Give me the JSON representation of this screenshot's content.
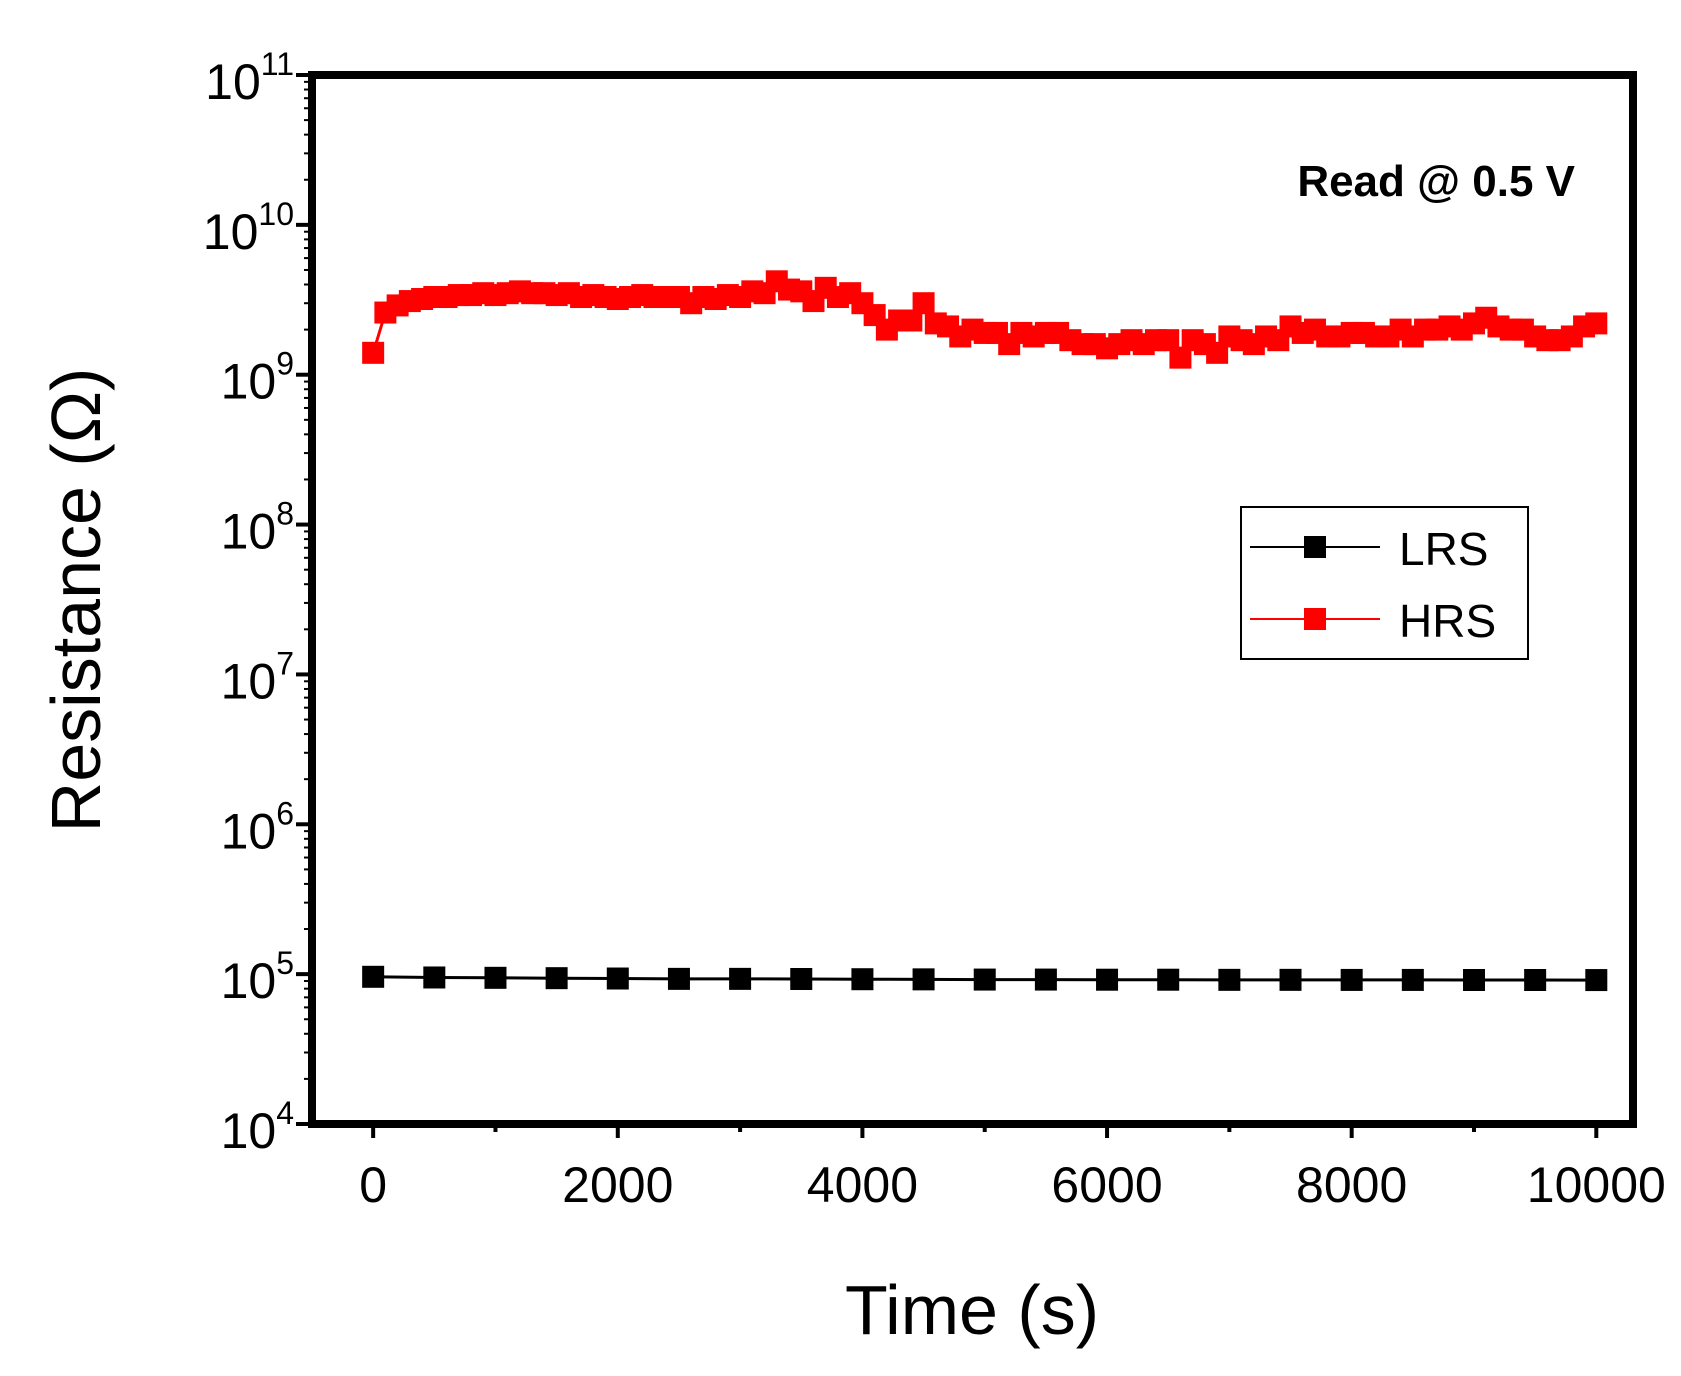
{
  "chart_data": {
    "type": "scatter",
    "xlabel": "Time (s)",
    "ylabel": "Resistance (Ω)",
    "annotation": "Read @ 0.5 V",
    "xlim": [
      -500,
      10300
    ],
    "ylim": [
      10000,
      100000000000
    ],
    "yscale": "log",
    "xticks": [
      0,
      2000,
      4000,
      6000,
      8000,
      10000
    ],
    "yticks": [
      {
        "base": "10",
        "exp": "4",
        "value": 10000
      },
      {
        "base": "10",
        "exp": "5",
        "value": 100000
      },
      {
        "base": "10",
        "exp": "6",
        "value": 1000000
      },
      {
        "base": "10",
        "exp": "7",
        "value": 10000000
      },
      {
        "base": "10",
        "exp": "8",
        "value": 100000000
      },
      {
        "base": "10",
        "exp": "9",
        "value": 1000000000
      },
      {
        "base": "10",
        "exp": "10",
        "value": 10000000000
      },
      {
        "base": "10",
        "exp": "11",
        "value": 100000000000
      }
    ],
    "legend_position": "center-right",
    "series": [
      {
        "name": "LRS",
        "color": "#000000",
        "marker": "square",
        "x": [
          0,
          500,
          1000,
          1500,
          2000,
          2500,
          3000,
          3500,
          4000,
          4500,
          5000,
          5500,
          6000,
          6500,
          7000,
          7500,
          8000,
          8500,
          9000,
          9500,
          10000
        ],
        "y": [
          96000,
          95000,
          94500,
          94000,
          93500,
          93000,
          93000,
          92800,
          92500,
          92300,
          92000,
          92000,
          91800,
          91800,
          91600,
          91600,
          91500,
          91500,
          91400,
          91400,
          91300
        ]
      },
      {
        "name": "HRS",
        "color": "#ff0000",
        "marker": "square",
        "x": [
          0,
          100,
          200,
          300,
          400,
          500,
          600,
          700,
          800,
          900,
          1000,
          1100,
          1200,
          1300,
          1400,
          1500,
          1600,
          1700,
          1800,
          1900,
          2000,
          2100,
          2200,
          2300,
          2400,
          2500,
          2600,
          2700,
          2800,
          2900,
          3000,
          3100,
          3200,
          3300,
          3400,
          3500,
          3600,
          3700,
          3800,
          3900,
          4000,
          4100,
          4200,
          4300,
          4400,
          4500,
          4600,
          4700,
          4800,
          4900,
          5000,
          5100,
          5200,
          5300,
          5400,
          5500,
          5600,
          5700,
          5800,
          5900,
          6000,
          6100,
          6200,
          6300,
          6400,
          6500,
          6600,
          6700,
          6800,
          6900,
          7000,
          7100,
          7200,
          7300,
          7400,
          7500,
          7600,
          7700,
          7800,
          7900,
          8000,
          8100,
          8200,
          8300,
          8400,
          8500,
          8600,
          8700,
          8800,
          8900,
          9000,
          9100,
          9200,
          9300,
          9400,
          9500,
          9600,
          9700,
          9800,
          9900,
          10000
        ],
        "y": [
          1400000000,
          2600000000,
          2900000000,
          3100000000,
          3200000000,
          3300000000,
          3300000000,
          3400000000,
          3400000000,
          3500000000,
          3400000000,
          3500000000,
          3600000000,
          3500000000,
          3500000000,
          3400000000,
          3500000000,
          3300000000,
          3400000000,
          3300000000,
          3200000000,
          3300000000,
          3400000000,
          3300000000,
          3300000000,
          3300000000,
          3000000000,
          3300000000,
          3200000000,
          3400000000,
          3300000000,
          3600000000,
          3500000000,
          4200000000,
          3700000000,
          3600000000,
          3100000000,
          3800000000,
          3300000000,
          3500000000,
          3000000000,
          2500000000,
          2000000000,
          2300000000,
          2300000000,
          3000000000,
          2200000000,
          2100000000,
          1800000000,
          2000000000,
          1900000000,
          1900000000,
          1600000000,
          1900000000,
          1800000000,
          1900000000,
          1900000000,
          1700000000,
          1600000000,
          1600000000,
          1500000000,
          1600000000,
          1700000000,
          1600000000,
          1700000000,
          1700000000,
          1300000000,
          1700000000,
          1600000000,
          1400000000,
          1800000000,
          1700000000,
          1600000000,
          1800000000,
          1700000000,
          2100000000,
          1900000000,
          2000000000,
          1800000000,
          1800000000,
          1900000000,
          1900000000,
          1800000000,
          1800000000,
          2000000000,
          1800000000,
          2000000000,
          2000000000,
          2100000000,
          2000000000,
          2200000000,
          2400000000,
          2100000000,
          2000000000,
          2000000000,
          1800000000,
          1700000000,
          1700000000,
          1800000000,
          2100000000,
          2200000000
        ]
      }
    ]
  }
}
